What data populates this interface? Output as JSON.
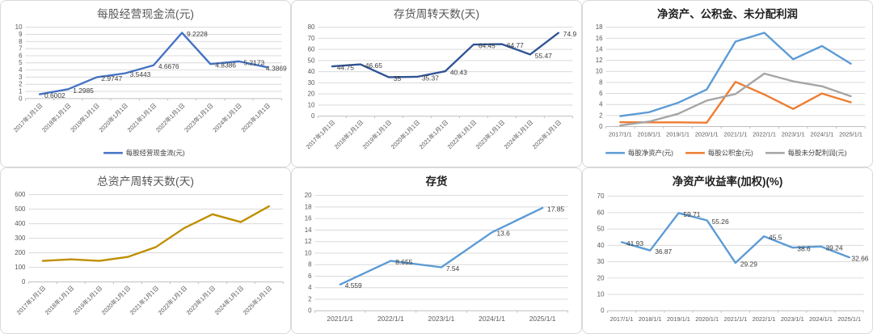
{
  "style": {
    "panel_background": "#ffffff",
    "panel_border_color": "#d9d9d9",
    "grid_color": "#d9d9d9",
    "axis_line_color": "#bfbfbf",
    "axis_label_color": "#595959",
    "data_label_color": "#3b3b3b",
    "legend_label_color": "#404040",
    "title_gray": "#595959",
    "title_black": "#1f1f1f"
  },
  "chart_data": [
    {
      "id": "operating-cash-flow-per-share",
      "type": "line",
      "title": "每股经营现金流(元)",
      "title_style": "gray",
      "categories": [
        "2017年1月1日",
        "2018年1月1日",
        "2019年1月1日",
        "2020年1月1日",
        "2021年1月1日",
        "2022年1月1日",
        "2023年1月1日",
        "2024年1月1日",
        "2025年1月1日"
      ],
      "series": [
        {
          "name": "每股经营现金流(元)",
          "color": "#4472C4",
          "values": [
            0.6002,
            1.2985,
            2.9747,
            3.5443,
            4.6676,
            9.2228,
            4.8386,
            5.2173,
            4.3869
          ],
          "labels": [
            "0.6002",
            "1.2985",
            "2.9747",
            "3.5443",
            "4.6676",
            "9.2228",
            "4.8386",
            "5.2173",
            "4.3869"
          ]
        }
      ],
      "ylim": [
        0,
        10
      ],
      "ytick_step": 1,
      "grid": true,
      "legend": true,
      "legend_position": "bottom",
      "x_labels_rotated": true
    },
    {
      "id": "inventory-turnover-days",
      "type": "line",
      "title": "存货周转天数(天)",
      "title_style": "gray",
      "categories": [
        "2017年1月1日",
        "2018年1月1日",
        "2019年1月1日",
        "2020年1月1日",
        "2021年1月1日",
        "2022年1月1日",
        "2023年1月1日",
        "2024年1月1日",
        "2025年1月1日"
      ],
      "series": [
        {
          "name": "存货周转天数(天)",
          "color": "#2F5496",
          "values": [
            44.75,
            46.65,
            35,
            35.37,
            40.43,
            64.45,
            64.77,
            55.47,
            74.9
          ],
          "labels": [
            "44.75",
            "46.65",
            "35",
            "35.37",
            "40.43",
            "64.45",
            "64.77",
            "55.47",
            "74.9"
          ]
        }
      ],
      "ylim": [
        0,
        80
      ],
      "ytick_step": 10,
      "grid": true,
      "legend": false,
      "x_labels_rotated": true
    },
    {
      "id": "net-assets-reserve-undistributed-profit",
      "type": "line",
      "title": "净资产、公积金、未分配利润",
      "title_style": "bold",
      "categories": [
        "2017/1/1",
        "2018/1/1",
        "2019/1/1",
        "2020/1/1",
        "2021/1/1",
        "2022/1/1",
        "2023/1/1",
        "2024/1/1",
        "2025/1/1"
      ],
      "series": [
        {
          "name": "每股净资产(元)",
          "color": "#5B9BD5",
          "values": [
            1.9,
            2.6,
            4.3,
            6.7,
            15.4,
            17.0,
            12.2,
            14.6,
            11.4
          ]
        },
        {
          "name": "每股公积金(元)",
          "color": "#ED7D31",
          "values": [
            0.8,
            0.75,
            0.75,
            0.7,
            8.1,
            5.8,
            3.2,
            6.0,
            4.4
          ]
        },
        {
          "name": "每股未分配利润(元)",
          "color": "#A5A5A5",
          "values": [
            0.2,
            0.9,
            2.3,
            4.7,
            5.9,
            9.6,
            8.2,
            7.3,
            5.5
          ]
        }
      ],
      "ylim": [
        0,
        18
      ],
      "ytick_step": 2,
      "grid": true,
      "legend": true,
      "legend_position": "bottom",
      "x_labels_rotated": false
    },
    {
      "id": "total-asset-turnover-days",
      "type": "line",
      "title": "总资产周转天数(天)",
      "title_style": "gray",
      "categories": [
        "2017年1月1日",
        "2018年1月1日",
        "2019年1月1日",
        "2020年1月1日",
        "2021年1月1日",
        "2022年1月1日",
        "2023年1月1日",
        "2024年1月1日",
        "2025年1月1日"
      ],
      "series": [
        {
          "name": "总资产周转天数(天)",
          "color": "#BF8F00",
          "values": [
            145,
            155,
            145,
            172,
            240,
            370,
            465,
            412,
            520
          ]
        }
      ],
      "ylim": [
        0,
        600
      ],
      "ytick_step": 100,
      "grid": true,
      "legend": false,
      "x_labels_rotated": true
    },
    {
      "id": "inventory",
      "type": "line",
      "title": "存货",
      "title_style": "bold",
      "categories": [
        "2021/1/1",
        "2022/1/1",
        "2023/1/1",
        "2024/1/1",
        "2025/1/1"
      ],
      "series": [
        {
          "name": "存货",
          "color": "#5B9BD5",
          "values": [
            4.559,
            8.655,
            7.54,
            13.6,
            17.85
          ],
          "labels": [
            "4.559",
            "8.655",
            "7.54",
            "13.6",
            "17.85"
          ]
        }
      ],
      "ylim": [
        0,
        20
      ],
      "ytick_step": 2,
      "grid": true,
      "legend": false,
      "x_labels_rotated": false
    },
    {
      "id": "roe-weighted",
      "type": "line",
      "title": "净资产收益率(加权)(%)",
      "title_style": "bold",
      "categories": [
        "2017/1/1",
        "2018/1/1",
        "2019/1/1",
        "2020/1/1",
        "2021/1/1",
        "2022/1/1",
        "2023/1/1",
        "2024/1/1",
        "2025/1/1"
      ],
      "series": [
        {
          "name": "净资产收益率(加权)(%)",
          "color": "#5B9BD5",
          "values": [
            41.93,
            36.87,
            59.71,
            55.26,
            29.29,
            45.5,
            38.6,
            39.24,
            32.66
          ],
          "labels": [
            "41.93",
            "36.87",
            "59.71",
            "55.26",
            "29.29",
            "45.5",
            "38.6",
            "39.24",
            "32.66"
          ]
        }
      ],
      "ylim": [
        0,
        70
      ],
      "ytick_step": 10,
      "grid": true,
      "legend": false,
      "x_labels_rotated": false
    }
  ]
}
